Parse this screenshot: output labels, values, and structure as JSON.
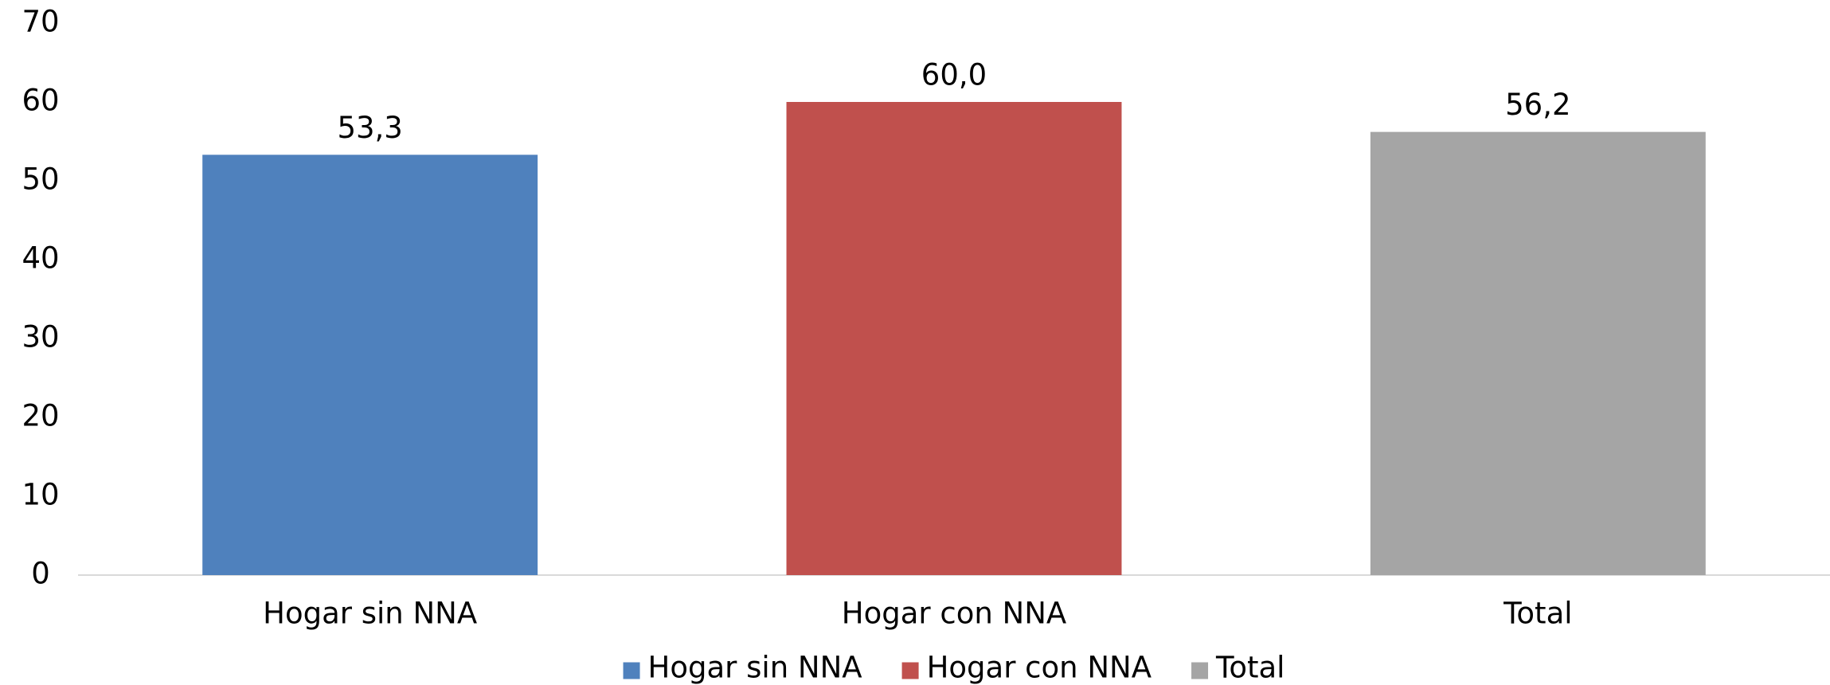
{
  "chart_data": {
    "type": "bar",
    "categories": [
      "Hogar sin NNA",
      "Hogar con NNA",
      "Total"
    ],
    "values": [
      53.3,
      60.0,
      56.2
    ],
    "value_labels": [
      "53,3",
      "60,0",
      "56,2"
    ],
    "colors": [
      "#4f81bd",
      "#c0504d",
      "#a5a5a5"
    ],
    "ylim": [
      0,
      70
    ],
    "yticks": [
      0,
      10,
      20,
      30,
      40,
      50,
      60,
      70
    ],
    "grid": false,
    "legend": "bottom"
  }
}
